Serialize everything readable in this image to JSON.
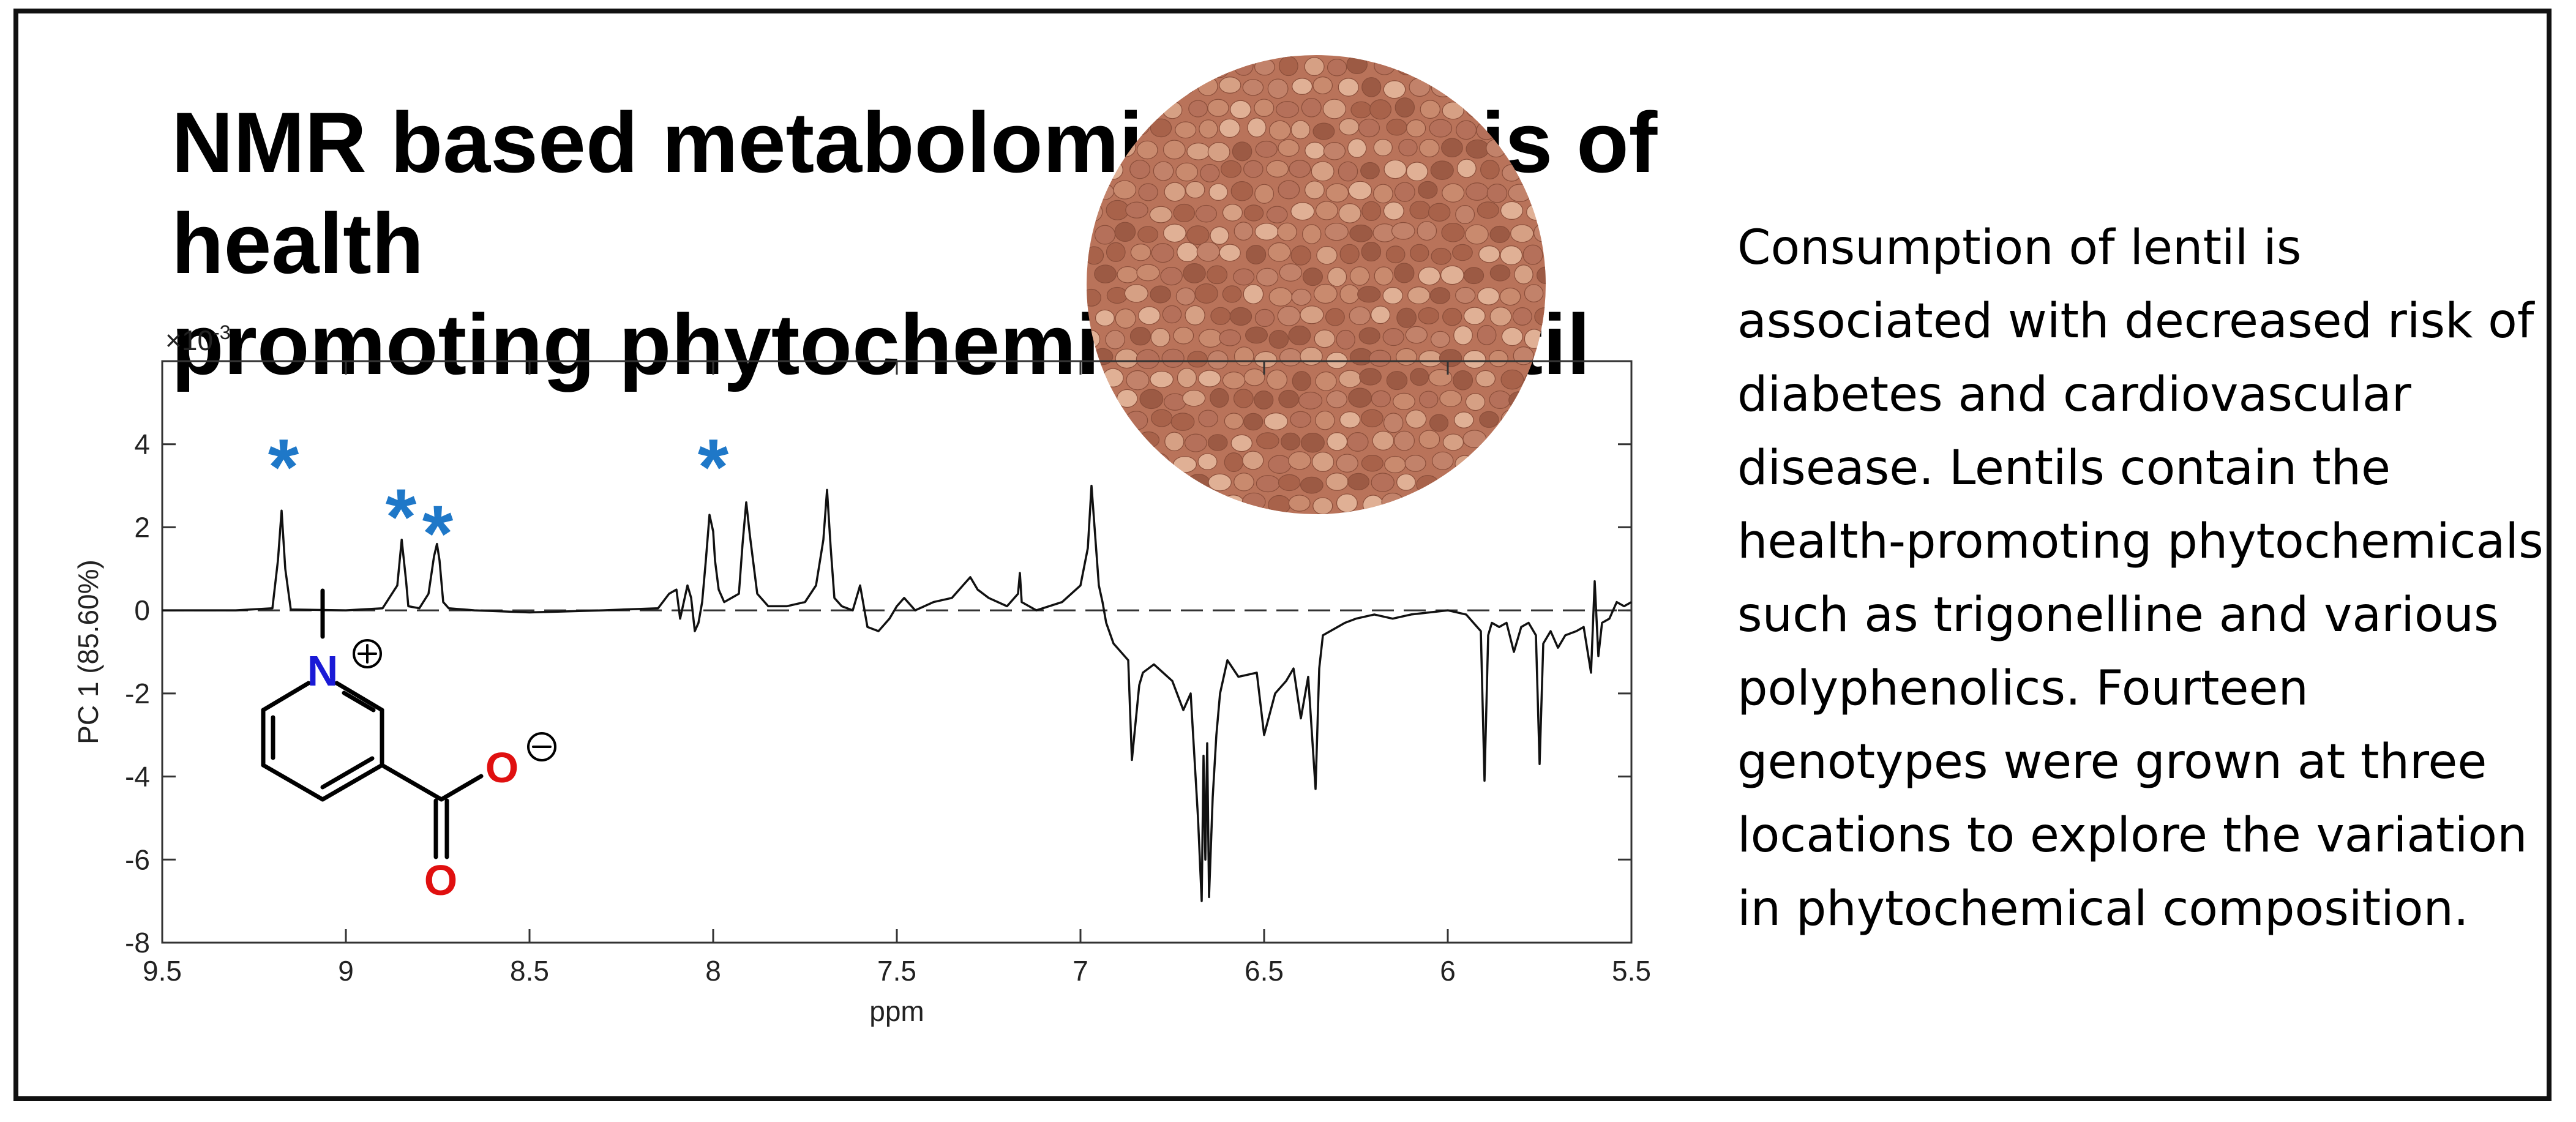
{
  "title": "NMR based metabolomic analysis of health\npromoting phytochemicals in lentil",
  "abstract": "Consumption of lentil is associated with decreased risk of diabetes and cardiovascular disease. Lentils contain the health-promoting phytochemicals such as trigonelline and various polyphenolics. Fourteen genotypes were grown at three locations to explore the variation in phytochemical composition.",
  "colors": {
    "trace": "#111111",
    "asterisk": "#1f78c8",
    "nitrogen": "#1a1ad6",
    "oxygen": "#e01010",
    "lentil": "#b9735a"
  },
  "molecule": {
    "name_icon": "trigonelline-structure",
    "n_label": "N",
    "o1_label": "O",
    "o2_label": "O",
    "plus_charge": "+",
    "minus_charge": "−"
  },
  "chart_data": {
    "type": "line",
    "xlabel": "ppm",
    "ylabel": "PC 1 (85.60%)",
    "y_exponent_label": "×10",
    "y_exponent_power": "-3",
    "xlim": [
      9.5,
      5.5
    ],
    "ylim": [
      -8,
      6
    ],
    "x_reversed": true,
    "x_ticks": [
      9.5,
      9,
      8.5,
      8,
      7.5,
      7,
      6.5,
      6,
      5.5
    ],
    "x_tick_labels": [
      "9.5",
      "9",
      "8.5",
      "8",
      "7.5",
      "7",
      "6.5",
      "6",
      "5.5"
    ],
    "y_ticks": [
      4,
      2,
      0,
      -2,
      -4,
      -6,
      -8
    ],
    "y_tick_labels": [
      "4",
      "2",
      "0",
      "-2",
      "-4",
      "-6",
      "-8"
    ],
    "zero_reference_line": "dashed",
    "grid": false,
    "markers": [
      {
        "x": 9.17,
        "y": 3.5,
        "label": "*"
      },
      {
        "x": 8.85,
        "y": 2.3,
        "label": "*"
      },
      {
        "x": 8.75,
        "y": 1.9,
        "label": "*"
      },
      {
        "x": 8.0,
        "y": 3.5,
        "label": "*"
      }
    ],
    "series": [
      {
        "x": [
          9.5,
          9.3,
          9.2,
          9.185,
          9.175,
          9.165,
          9.15,
          9.0,
          8.9,
          8.86,
          8.848,
          8.836,
          8.83,
          8.8,
          8.775,
          8.76,
          8.752,
          8.745,
          8.735,
          8.72,
          8.65,
          8.5,
          8.3,
          8.15,
          8.12,
          8.1,
          8.09,
          8.07,
          8.06,
          8.05,
          8.04,
          8.03,
          8.02,
          8.01,
          8.0,
          7.995,
          7.985,
          7.97,
          7.95,
          7.93,
          7.92,
          7.91,
          7.9,
          7.88,
          7.85,
          7.8,
          7.75,
          7.72,
          7.7,
          7.69,
          7.68,
          7.67,
          7.65,
          7.62,
          7.6,
          7.58,
          7.55,
          7.52,
          7.5,
          7.48,
          7.45,
          7.4,
          7.35,
          7.32,
          7.3,
          7.28,
          7.25,
          7.2,
          7.17,
          7.165,
          7.16,
          7.12,
          7.05,
          7.0,
          6.98,
          6.97,
          6.96,
          6.95,
          6.94,
          6.93,
          6.91,
          6.89,
          6.87,
          6.86,
          6.84,
          6.83,
          6.8,
          6.75,
          6.72,
          6.7,
          6.68,
          6.67,
          6.665,
          6.66,
          6.655,
          6.65,
          6.64,
          6.63,
          6.62,
          6.6,
          6.57,
          6.52,
          6.5,
          6.47,
          6.44,
          6.42,
          6.4,
          6.38,
          6.36,
          6.35,
          6.34,
          6.3,
          6.28,
          6.25,
          6.2,
          6.15,
          6.1,
          6.05,
          6.0,
          5.95,
          5.91,
          5.9,
          5.89,
          5.88,
          5.86,
          5.84,
          5.82,
          5.8,
          5.78,
          5.76,
          5.75,
          5.74,
          5.72,
          5.7,
          5.68,
          5.65,
          5.63,
          5.61,
          5.6,
          5.59,
          5.58,
          5.56,
          5.54,
          5.52,
          5.5
        ],
        "values": [
          0,
          0,
          0.05,
          1.2,
          2.4,
          1.0,
          0.02,
          0,
          0.05,
          0.6,
          1.7,
          0.7,
          0.1,
          0.05,
          0.4,
          1.3,
          1.6,
          1.2,
          0.2,
          0.05,
          0.0,
          -0.05,
          0.0,
          0.05,
          0.4,
          0.5,
          -0.2,
          0.6,
          0.3,
          -0.5,
          -0.3,
          0.2,
          1.2,
          2.3,
          1.9,
          1.2,
          0.5,
          0.2,
          0.3,
          0.4,
          1.6,
          2.6,
          1.8,
          0.4,
          0.1,
          0.1,
          0.2,
          0.6,
          1.7,
          2.9,
          1.5,
          0.3,
          0.1,
          0.0,
          0.6,
          -0.4,
          -0.5,
          -0.2,
          0.1,
          0.3,
          0.0,
          0.2,
          0.3,
          0.6,
          0.8,
          0.5,
          0.3,
          0.1,
          0.4,
          0.9,
          0.2,
          0.0,
          0.2,
          0.6,
          1.5,
          3.0,
          1.8,
          0.6,
          0.2,
          -0.3,
          -0.8,
          -1.0,
          -1.2,
          -3.6,
          -1.8,
          -1.5,
          -1.3,
          -1.7,
          -2.4,
          -2.0,
          -5.0,
          -7.0,
          -3.5,
          -6.0,
          -3.2,
          -6.9,
          -4.5,
          -3.0,
          -2.0,
          -1.2,
          -1.6,
          -1.5,
          -3.0,
          -2.0,
          -1.7,
          -1.4,
          -2.6,
          -1.6,
          -4.3,
          -1.4,
          -0.6,
          -0.4,
          -0.3,
          -0.2,
          -0.1,
          -0.2,
          -0.1,
          -0.05,
          0,
          -0.1,
          -0.5,
          -4.1,
          -0.6,
          -0.3,
          -0.4,
          -0.3,
          -1.0,
          -0.4,
          -0.3,
          -0.6,
          -3.7,
          -0.8,
          -0.5,
          -0.9,
          -0.6,
          -0.5,
          -0.4,
          -1.5,
          0.7,
          -1.1,
          -0.3,
          -0.2,
          0.2,
          0.1,
          0.2
        ]
      }
    ]
  }
}
